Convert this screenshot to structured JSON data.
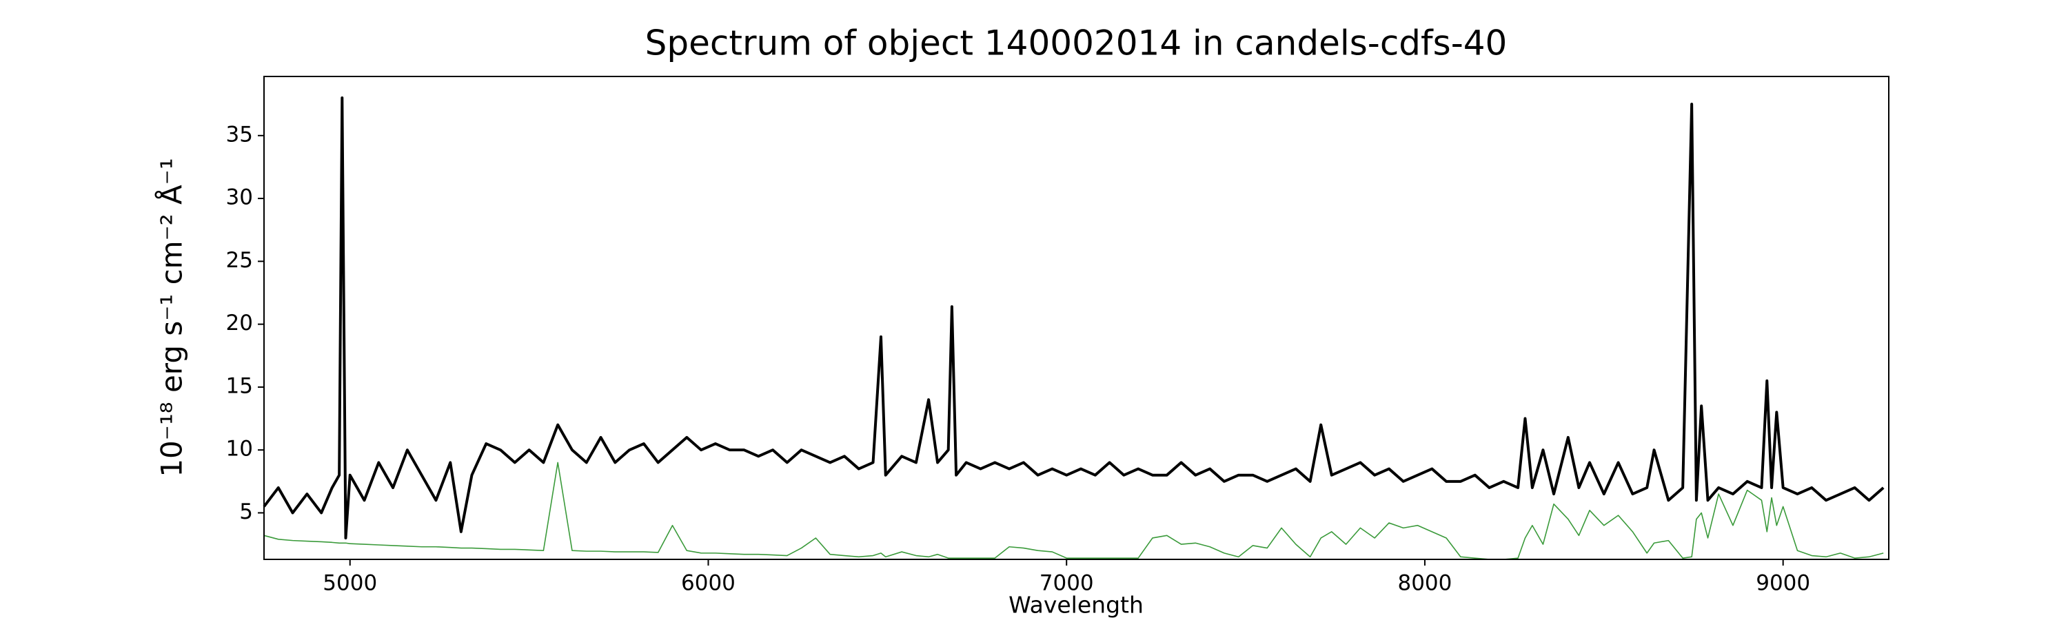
{
  "chart_data": {
    "type": "line",
    "title": "Spectrum of object 140002014 in candels-cdfs-40",
    "xlabel": "Wavelength",
    "ylabel": "10⁻¹⁸ erg s⁻¹ cm⁻² Å⁻¹",
    "xlim": [
      4760,
      9295
    ],
    "ylim": [
      1.3,
      39.7
    ],
    "xticks": [
      5000,
      6000,
      7000,
      8000,
      9000
    ],
    "yticks": [
      5,
      10,
      15,
      20,
      25,
      30,
      35
    ],
    "grid": false,
    "x": [
      4760,
      4800,
      4840,
      4880,
      4920,
      4950,
      4970,
      4978,
      4988,
      5000,
      5040,
      5080,
      5120,
      5160,
      5200,
      5240,
      5280,
      5310,
      5340,
      5380,
      5420,
      5460,
      5500,
      5540,
      5580,
      5620,
      5660,
      5700,
      5740,
      5780,
      5820,
      5860,
      5900,
      5940,
      5980,
      6020,
      6060,
      6100,
      6140,
      6180,
      6220,
      6260,
      6300,
      6340,
      6380,
      6420,
      6460,
      6482,
      6495,
      6540,
      6580,
      6615,
      6640,
      6670,
      6680,
      6692,
      6720,
      6760,
      6800,
      6840,
      6880,
      6920,
      6960,
      7000,
      7040,
      7080,
      7120,
      7160,
      7200,
      7240,
      7280,
      7320,
      7360,
      7400,
      7440,
      7480,
      7520,
      7560,
      7600,
      7640,
      7680,
      7710,
      7740,
      7780,
      7820,
      7860,
      7900,
      7940,
      7980,
      8020,
      8060,
      8100,
      8140,
      8180,
      8220,
      8260,
      8280,
      8300,
      8330,
      8360,
      8400,
      8430,
      8460,
      8500,
      8540,
      8580,
      8620,
      8640,
      8680,
      8720,
      8745,
      8758,
      8772,
      8790,
      8820,
      8860,
      8900,
      8940,
      8955,
      8968,
      8982,
      9000,
      9040,
      9080,
      9120,
      9160,
      9200,
      9240,
      9280
    ],
    "series": [
      {
        "color": "#000000",
        "width": 4,
        "values": [
          5.5,
          7,
          5,
          6.5,
          5,
          7,
          8,
          38,
          3,
          8,
          6,
          9,
          7,
          10,
          8,
          6,
          9,
          3.5,
          8,
          10.5,
          10,
          9,
          10,
          9,
          12,
          10,
          9,
          11,
          9,
          10,
          10.5,
          9,
          10,
          11,
          10,
          10.5,
          10,
          10,
          9.5,
          10,
          9,
          10,
          9.5,
          9,
          9.5,
          8.5,
          9,
          19,
          8,
          9.5,
          9,
          14,
          9,
          10,
          21.4,
          8,
          9,
          8.5,
          9,
          8.5,
          9,
          8,
          8.5,
          8,
          8.5,
          8,
          9,
          8,
          8.5,
          8,
          8,
          9,
          8,
          8.5,
          7.5,
          8,
          8,
          7.5,
          8,
          8.5,
          7.5,
          12,
          8,
          8.5,
          9,
          8,
          8.5,
          7.5,
          8,
          8.5,
          7.5,
          7.5,
          8,
          7,
          7.5,
          7,
          12.5,
          7,
          10,
          6.5,
          11,
          7,
          9,
          6.5,
          9,
          6.5,
          7,
          10,
          6,
          7,
          37.5,
          6,
          13.5,
          6,
          7,
          6.5,
          7.5,
          7,
          15.5,
          7,
          13,
          7,
          6.5,
          7,
          6,
          6.5,
          7,
          6,
          7
        ]
      },
      {
        "color": "#3a9a3a",
        "width": 1.6,
        "values": [
          3.2,
          2.9,
          2.8,
          2.75,
          2.7,
          2.65,
          2.6,
          2.6,
          2.6,
          2.55,
          2.5,
          2.45,
          2.4,
          2.35,
          2.3,
          2.3,
          2.25,
          2.2,
          2.2,
          2.15,
          2.1,
          2.1,
          2.05,
          2.0,
          9,
          2.0,
          1.95,
          1.95,
          1.9,
          1.9,
          1.9,
          1.85,
          4,
          2,
          1.8,
          1.8,
          1.75,
          1.7,
          1.7,
          1.65,
          1.6,
          2.2,
          3,
          1.7,
          1.6,
          1.5,
          1.6,
          1.8,
          1.5,
          1.9,
          1.6,
          1.5,
          1.7,
          1.4,
          1.4,
          1.4,
          1.4,
          1.4,
          1.4,
          2.3,
          2.2,
          2,
          1.9,
          1.4,
          1.4,
          1.4,
          1.4,
          1.4,
          1.4,
          3,
          3.2,
          2.5,
          2.6,
          2.3,
          1.8,
          1.5,
          2.4,
          2.2,
          3.8,
          2.5,
          1.5,
          3,
          3.5,
          2.5,
          3.8,
          3,
          4.2,
          3.8,
          4,
          3.5,
          3,
          1.5,
          1.4,
          1.3,
          1.3,
          1.4,
          3,
          4,
          2.5,
          5.7,
          4.5,
          3.2,
          5.2,
          4,
          4.8,
          3.5,
          1.8,
          2.6,
          2.8,
          1.4,
          1.5,
          4.5,
          5,
          3,
          6.5,
          4,
          6.8,
          6,
          3.5,
          6.2,
          4,
          5.5,
          2,
          1.6,
          1.5,
          1.8,
          1.4,
          1.5,
          1.8
        ]
      }
    ]
  }
}
